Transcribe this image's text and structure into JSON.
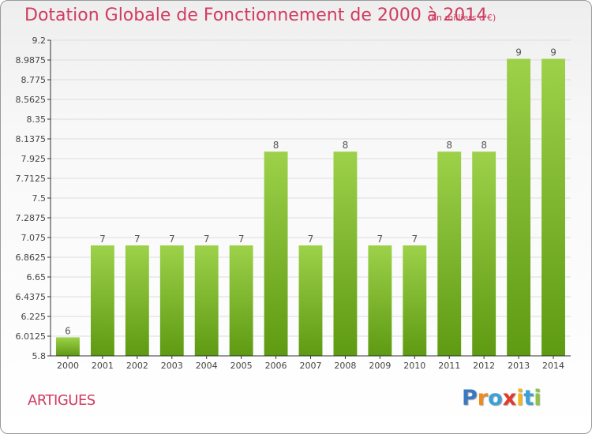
{
  "header": {
    "title": "Dotation Globale de Fonctionnement de 2000 à 2014",
    "subtitle": "(en milliers d'€)"
  },
  "commune": "ARTIGUES",
  "logo": {
    "letters": [
      "P",
      "r",
      "o",
      "x",
      "i",
      "t",
      "i"
    ],
    "colors": [
      "#3a78c2",
      "#f08a1c",
      "#3aa0d8",
      "#e03a2a",
      "#f2b51a",
      "#3aa0d8",
      "#8cc63f"
    ]
  },
  "chart_data": {
    "type": "bar",
    "title": "Dotation Globale de Fonctionnement de 2000 à 2014",
    "subtitle": "(en milliers d'€)",
    "categories": [
      "2000",
      "2001",
      "2002",
      "2003",
      "2004",
      "2005",
      "2006",
      "2007",
      "2008",
      "2009",
      "2010",
      "2011",
      "2012",
      "2013",
      "2014"
    ],
    "values": [
      6,
      7,
      7,
      7,
      7,
      7,
      8,
      7,
      8,
      7,
      7,
      8,
      8,
      9,
      9
    ],
    "data_labels": [
      "6",
      "7",
      "7",
      "7",
      "7",
      "7",
      "8",
      "7",
      "8",
      "7",
      "7",
      "8",
      "8",
      "9",
      "9"
    ],
    "bar_level": [
      6.0,
      6.99,
      6.99,
      6.99,
      6.99,
      6.99,
      8.0,
      6.99,
      8.0,
      6.99,
      6.99,
      8.0,
      8.0,
      9.0,
      9.0
    ],
    "ylim": [
      5.8,
      9.2
    ],
    "yticks": [
      5.8,
      6.0125,
      6.225,
      6.4375,
      6.65,
      6.8625,
      7.075,
      7.2875,
      7.5,
      7.7125,
      7.925,
      8.1375,
      8.35,
      8.5625,
      8.775,
      8.9875,
      9.2
    ],
    "ytick_labels": [
      "5.8",
      "6.0125",
      "6.225",
      "6.4375",
      "6.65",
      "6.8625",
      "7.075",
      "7.2875",
      "7.5",
      "7.7125",
      "7.925",
      "8.1375",
      "8.35",
      "8.5625",
      "8.775",
      "8.9875",
      "9.2"
    ],
    "xlabel": "",
    "ylabel": "",
    "grid": true,
    "legend": "none",
    "colors": {
      "bar_top": "#9dd14a",
      "bar_bottom": "#5e9a12",
      "grid": "#dddddd",
      "axis": "#333333"
    }
  }
}
